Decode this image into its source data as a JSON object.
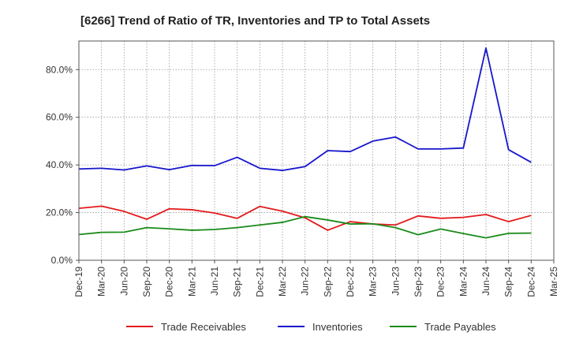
{
  "chart_data": {
    "type": "line",
    "title": "[6266]  Trend of Ratio of TR, Inventories and TP to Total Assets",
    "xlabel": "",
    "ylabel": "",
    "categories": [
      "Dec-19",
      "Mar-20",
      "Jun-20",
      "Sep-20",
      "Dec-20",
      "Mar-21",
      "Jun-21",
      "Sep-21",
      "Dec-21",
      "Mar-22",
      "Jun-22",
      "Sep-22",
      "Dec-22",
      "Mar-23",
      "Jun-23",
      "Sep-23",
      "Dec-23",
      "Mar-24",
      "Jun-24",
      "Sep-24",
      "Dec-24",
      "Mar-25"
    ],
    "ylim": [
      0,
      92
    ],
    "yticks": [
      0,
      20,
      40,
      60,
      80
    ],
    "ytick_labels": [
      "0.0%",
      "20.0%",
      "40.0%",
      "60.0%",
      "80.0%"
    ],
    "grid": true,
    "legend_position": "bottom",
    "series": [
      {
        "name": "Trade Receivables",
        "color": "#e31a1c",
        "values": [
          21.8,
          22.7,
          20.5,
          17.2,
          21.6,
          21.2,
          19.8,
          17.6,
          22.6,
          20.6,
          17.8,
          12.6,
          16.2,
          15.2,
          14.8,
          18.6,
          17.6,
          18.0,
          19.2,
          16.2,
          18.8,
          null
        ]
      },
      {
        "name": "Inventories",
        "color": "#1616cc",
        "values": [
          38.3,
          38.6,
          37.9,
          39.6,
          38.0,
          39.8,
          39.7,
          43.2,
          38.6,
          37.7,
          39.3,
          46.0,
          45.6,
          50.0,
          51.7,
          46.7,
          46.7,
          47.1,
          89.0,
          46.4,
          41.1,
          null
        ]
      },
      {
        "name": "Trade Payables",
        "color": "#1a8a1a",
        "values": [
          10.8,
          11.7,
          11.8,
          13.7,
          13.2,
          12.6,
          12.9,
          13.7,
          14.8,
          15.9,
          18.3,
          16.9,
          15.2,
          15.3,
          13.7,
          10.7,
          13.1,
          11.2,
          9.4,
          11.3,
          11.4,
          null
        ]
      }
    ]
  }
}
